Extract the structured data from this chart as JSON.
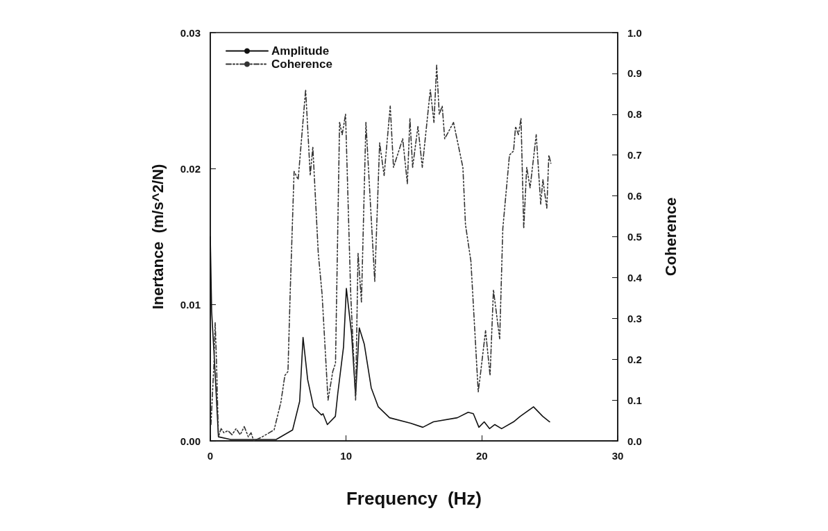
{
  "chart_data": {
    "type": "line",
    "xlabel": "Frequency  (Hz)",
    "ylabel": "Inertance  (m/s^2/N)",
    "y2label": "Coherence",
    "xlim": [
      0,
      30
    ],
    "xticks": [
      0,
      10,
      20,
      30
    ],
    "ylim": [
      0,
      0.03
    ],
    "yticks": [
      {
        "value": 0,
        "label": "0.00"
      },
      0.01,
      0.02,
      0.03
    ],
    "y2lim": [
      0,
      1
    ],
    "y2ticks": [
      {
        "value": 0,
        "label": "0.0"
      },
      0.1,
      0.2,
      0.3,
      0.4,
      0.5,
      0.6,
      0.7,
      0.8,
      0.9,
      {
        "value": 1,
        "label": "1.0"
      }
    ],
    "legend": "top left",
    "grid": false,
    "series": [
      {
        "name": "Amplitude",
        "color": "#111111",
        "axis": "y",
        "line_style": "solid",
        "x": [
          0,
          0.1,
          0.3,
          0.6,
          1.5,
          3,
          4.0,
          4.85,
          6.06,
          6.58,
          6.83,
          7.17,
          7.6,
          8.19,
          8.3,
          8.62,
          9.21,
          9.39,
          9.81,
          10.02,
          10.4,
          10.7,
          10.97,
          11.34,
          11.85,
          12.37,
          13.2,
          14.75,
          15.65,
          16.43,
          18.19,
          18.99,
          19.37,
          19.78,
          20.17,
          20.56,
          20.95,
          21.45,
          22.33,
          22.82,
          23.8,
          24.48,
          24.99
        ],
        "values": [
          0.015,
          0.0095,
          0.006,
          0.0003,
          0.0001,
          0.0001,
          0.0001,
          0.0001,
          0.0008,
          0.0029,
          0.0076,
          0.0045,
          0.0025,
          0.0019,
          0.002,
          0.0012,
          0.0018,
          0.0035,
          0.0069,
          0.0112,
          0.0079,
          0.0033,
          0.0083,
          0.0071,
          0.0039,
          0.0025,
          0.0017,
          0.0013,
          0.001,
          0.0014,
          0.0017,
          0.0021,
          0.002,
          0.001,
          0.0014,
          0.0009,
          0.0012,
          0.0009,
          0.0014,
          0.0018,
          0.0025,
          0.0018,
          0.0014
        ]
      },
      {
        "name": "Coherence",
        "color": "#333333",
        "axis": "y2",
        "line_style": "dashed",
        "x": [
          0.05,
          0.27,
          0.36,
          0.45,
          0.6,
          0.8,
          1.0,
          1.3,
          1.6,
          1.9,
          2.2,
          2.5,
          2.8,
          3.0,
          3.2,
          3.83,
          4.7,
          5.2,
          5.49,
          5.72,
          5.88,
          6.17,
          6.47,
          7.02,
          7.36,
          7.55,
          7.95,
          8.23,
          8.67,
          9.02,
          9.22,
          9.52,
          9.71,
          9.96,
          10.34,
          10.7,
          10.88,
          11.13,
          11.46,
          12.11,
          12.47,
          12.8,
          13.25,
          13.49,
          14.17,
          14.51,
          14.7,
          14.9,
          15.29,
          15.61,
          16.2,
          16.47,
          16.67,
          16.86,
          17.08,
          17.26,
          17.91,
          18.6,
          18.79,
          19.19,
          19.73,
          19.88,
          20.27,
          20.6,
          20.85,
          21.31,
          21.54,
          22.03,
          22.33,
          22.48,
          22.69,
          22.88,
          23.08,
          23.3,
          23.55,
          24.0,
          24.33,
          24.49,
          24.78,
          24.93,
          25.08
        ],
        "values": [
          0.04,
          0.19,
          0.29,
          0.2,
          0.01,
          0.03,
          0.02,
          0.025,
          0.015,
          0.03,
          0.015,
          0.035,
          0.01,
          0.02,
          0.0,
          0.01,
          0.027,
          0.095,
          0.16,
          0.17,
          0.36,
          0.66,
          0.64,
          0.86,
          0.65,
          0.72,
          0.46,
          0.36,
          0.1,
          0.17,
          0.19,
          0.78,
          0.75,
          0.8,
          0.36,
          0.1,
          0.46,
          0.34,
          0.78,
          0.39,
          0.73,
          0.65,
          0.82,
          0.67,
          0.74,
          0.63,
          0.79,
          0.67,
          0.77,
          0.67,
          0.86,
          0.78,
          0.92,
          0.8,
          0.82,
          0.74,
          0.78,
          0.67,
          0.53,
          0.44,
          0.12,
          0.16,
          0.27,
          0.16,
          0.37,
          0.25,
          0.52,
          0.7,
          0.71,
          0.77,
          0.75,
          0.79,
          0.52,
          0.67,
          0.62,
          0.75,
          0.58,
          0.64,
          0.57,
          0.7,
          0.68
        ]
      }
    ]
  }
}
